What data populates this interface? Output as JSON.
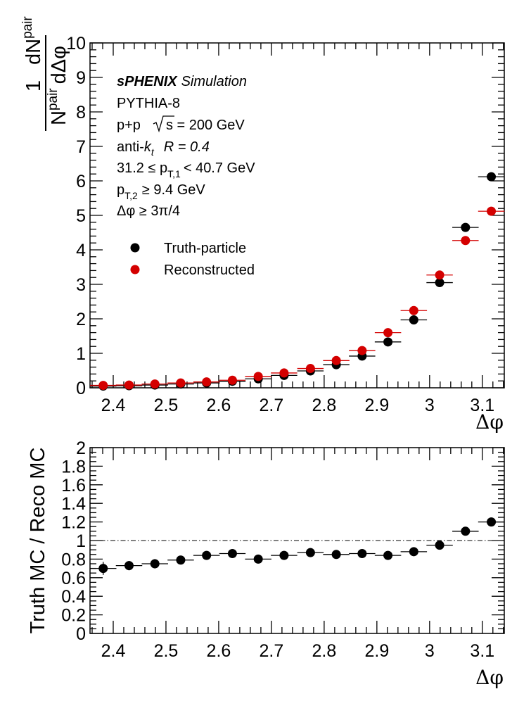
{
  "figure": {
    "annotations": {
      "experiment": "sPHENIX",
      "experiment_suffix": "Simulation",
      "generator": "PYTHIA-8",
      "collision": "p+p",
      "energy": "s = 200 GeV",
      "jet_alg_prefix": "anti-",
      "jet_alg_k": "k",
      "jet_alg_sub": "t",
      "jet_R": "R = 0.4",
      "pt1_low": "31.2 ≤ p",
      "pt1_sub": "T,1",
      "pt1_high": "< 40.7 GeV",
      "pt2_p": "p",
      "pt2_sub": "T,2",
      "pt2_rest": "≥ 9.4 GeV",
      "dphi_cut": "Δφ  ≥ 3π/4"
    },
    "top_ylabel": {
      "one": "1",
      "num_base": "dN",
      "num_sub": "pair",
      "den_base": "N",
      "den_sub": "pair",
      "den_rest": "dΔφ"
    },
    "colors": {
      "truth": "#000000",
      "reco": "#d40000"
    }
  },
  "chart_data": [
    {
      "type": "scatter",
      "xlabel": "Δφ",
      "xlim": [
        2.356,
        3.1416
      ],
      "ylim": [
        0,
        10
      ],
      "x_ticks": [
        "2.4",
        "2.5",
        "2.6",
        "2.7",
        "2.8",
        "2.9",
        "3",
        "3.1"
      ],
      "x_tick_values": [
        2.4,
        2.5,
        2.6,
        2.7,
        2.8,
        2.9,
        3.0,
        3.1
      ],
      "y_ticks": [
        "0",
        "1",
        "2",
        "3",
        "4",
        "5",
        "6",
        "7",
        "8",
        "9",
        "10"
      ],
      "y_tick_values": [
        0,
        1,
        2,
        3,
        4,
        5,
        6,
        7,
        8,
        9,
        10
      ],
      "bin_width": 0.05,
      "x": [
        2.381,
        2.43,
        2.479,
        2.528,
        2.577,
        2.626,
        2.675,
        2.724,
        2.774,
        2.823,
        2.872,
        2.921,
        2.97,
        3.019,
        3.068,
        3.117
      ],
      "series": [
        {
          "name": "Truth-particle",
          "color": "#000000",
          "values": [
            0.05,
            0.06,
            0.08,
            0.11,
            0.14,
            0.19,
            0.26,
            0.36,
            0.49,
            0.67,
            0.92,
            1.33,
            1.97,
            3.05,
            4.65,
            6.12
          ]
        },
        {
          "name": "Reconstructed",
          "color": "#d40000",
          "values": [
            0.07,
            0.08,
            0.11,
            0.14,
            0.17,
            0.22,
            0.33,
            0.43,
            0.56,
            0.79,
            1.08,
            1.6,
            2.24,
            3.27,
            4.27,
            5.12
          ]
        }
      ],
      "legend_position": "upper-left"
    },
    {
      "type": "scatter",
      "xlabel": "Δφ",
      "ylabel": "Truth MC / Reco MC",
      "xlim": [
        2.356,
        3.1416
      ],
      "ylim": [
        0,
        2
      ],
      "x_ticks": [
        "2.4",
        "2.5",
        "2.6",
        "2.7",
        "2.8",
        "2.9",
        "3",
        "3.1"
      ],
      "x_tick_values": [
        2.4,
        2.5,
        2.6,
        2.7,
        2.8,
        2.9,
        3.0,
        3.1
      ],
      "y_ticks": [
        "0",
        "0.2",
        "0.4",
        "0.6",
        "0.8",
        "1",
        "1.2",
        "1.4",
        "1.6",
        "1.8",
        "2"
      ],
      "y_tick_values": [
        0,
        0.2,
        0.4,
        0.6,
        0.8,
        1.0,
        1.2,
        1.4,
        1.6,
        1.8,
        2.0
      ],
      "reference_line": 1.0,
      "bin_width": 0.05,
      "x": [
        2.381,
        2.43,
        2.479,
        2.528,
        2.577,
        2.626,
        2.675,
        2.724,
        2.774,
        2.823,
        2.872,
        2.921,
        2.97,
        3.019,
        3.068,
        3.117
      ],
      "series": [
        {
          "color": "#000000",
          "values": [
            0.7,
            0.73,
            0.75,
            0.79,
            0.84,
            0.86,
            0.8,
            0.84,
            0.87,
            0.85,
            0.86,
            0.84,
            0.88,
            0.95,
            1.1,
            1.2
          ],
          "errors": [
            0.07,
            0.05,
            0.05,
            0.04,
            0.03,
            0.03,
            0.03,
            0.02,
            0.02,
            0.02,
            0.02,
            0.02,
            0.02,
            0.02,
            0.02,
            0.02
          ]
        }
      ]
    }
  ]
}
